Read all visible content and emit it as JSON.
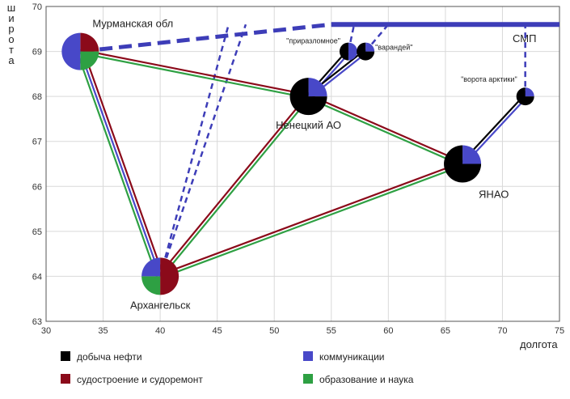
{
  "chart_data": {
    "type": "scatter",
    "xlabel": "долгота",
    "ylabel": "широта",
    "xlim": [
      30,
      75
    ],
    "ylim": [
      63,
      70
    ],
    "xticks": [
      30,
      35,
      40,
      45,
      50,
      55,
      60,
      65,
      70,
      75
    ],
    "yticks": [
      63,
      64,
      65,
      66,
      67,
      68,
      69,
      70
    ],
    "categories": [
      {
        "key": "oil",
        "label": "добыча нефти",
        "color": "#000000"
      },
      {
        "key": "ship",
        "label": "судостроение и судоремонт",
        "color": "#8b0a1a"
      },
      {
        "key": "comm",
        "label": "коммуникации",
        "color": "#4848c8"
      },
      {
        "key": "edu",
        "label": "образование и наука",
        "color": "#2ea043"
      }
    ],
    "nodes": [
      {
        "id": "murmansk",
        "label": "Мурманская обл",
        "x": 33,
        "y": 69,
        "size": "large",
        "shares": {
          "oil": 0,
          "ship": 0.25,
          "comm": 0.5,
          "edu": 0.25
        },
        "label_pos": "above-right"
      },
      {
        "id": "nenets",
        "label": "Ненецкий АО",
        "x": 53,
        "y": 68,
        "size": "large",
        "shares": {
          "oil": 0.75,
          "comm": 0.25
        },
        "label_pos": "below"
      },
      {
        "id": "yanao",
        "label": "ЯНАО",
        "x": 66.5,
        "y": 66.5,
        "size": "large",
        "shares": {
          "oil": 0.75,
          "comm": 0.25
        },
        "label_pos": "below-right"
      },
      {
        "id": "arkhangelsk",
        "label": "Архангельск",
        "x": 40,
        "y": 64,
        "size": "large",
        "shares": {
          "ship": 0.5,
          "comm": 0.25,
          "edu": 0.25
        },
        "label_pos": "below"
      },
      {
        "id": "prirazlomnoe",
        "label": "\"приразломное\"",
        "x": 56.5,
        "y": 69,
        "size": "small",
        "shares": {
          "oil": 0.5,
          "comm": 0.5
        },
        "label_pos": "left"
      },
      {
        "id": "varandey",
        "label": "\"варандей\"",
        "x": 58,
        "y": 69,
        "size": "small",
        "shares": {
          "oil": 0.75,
          "comm": 0.25
        },
        "label_pos": "right"
      },
      {
        "id": "vorota",
        "label": "\"ворота арктики\"",
        "x": 72,
        "y": 68,
        "size": "small",
        "shares": {
          "oil": 0.75,
          "comm": 0.25
        },
        "label_pos": "above-left"
      }
    ],
    "links": [
      {
        "from": "murmansk",
        "to": "arkhangelsk",
        "types": [
          "ship",
          "comm",
          "edu"
        ]
      },
      {
        "from": "murmansk",
        "to": "nenets",
        "types": [
          "ship",
          "edu"
        ]
      },
      {
        "from": "arkhangelsk",
        "to": "nenets",
        "types": [
          "ship",
          "edu"
        ]
      },
      {
        "from": "arkhangelsk",
        "to": "yanao",
        "types": [
          "ship",
          "edu"
        ]
      },
      {
        "from": "nenets",
        "to": "yanao",
        "types": [
          "ship",
          "edu"
        ]
      },
      {
        "from": "nenets",
        "to": "prirazlomnoe",
        "types": [
          "oil",
          "comm"
        ]
      },
      {
        "from": "nenets",
        "to": "varandey",
        "types": [
          "oil",
          "comm"
        ]
      },
      {
        "from": "yanao",
        "to": "vorota",
        "types": [
          "oil",
          "comm"
        ]
      }
    ],
    "smp": {
      "label": "СМП",
      "y": 69.6,
      "x_start": 55,
      "x_end": 75
    },
    "dashed_routes": [
      {
        "points": [
          [
            33,
            69
          ],
          [
            55,
            69.6
          ]
        ],
        "weight": "heavy"
      },
      {
        "points": [
          [
            40,
            64
          ],
          [
            46,
            69.6
          ]
        ],
        "weight": "light"
      },
      {
        "points": [
          [
            40,
            64
          ],
          [
            47.5,
            69.6
          ]
        ],
        "weight": "light"
      },
      {
        "points": [
          [
            56.5,
            69
          ],
          [
            57,
            69.6
          ]
        ],
        "weight": "light"
      },
      {
        "points": [
          [
            58,
            69
          ],
          [
            60,
            69.6
          ]
        ],
        "weight": "light"
      },
      {
        "points": [
          [
            72,
            68
          ],
          [
            72,
            69.6
          ]
        ],
        "weight": "light"
      }
    ]
  }
}
